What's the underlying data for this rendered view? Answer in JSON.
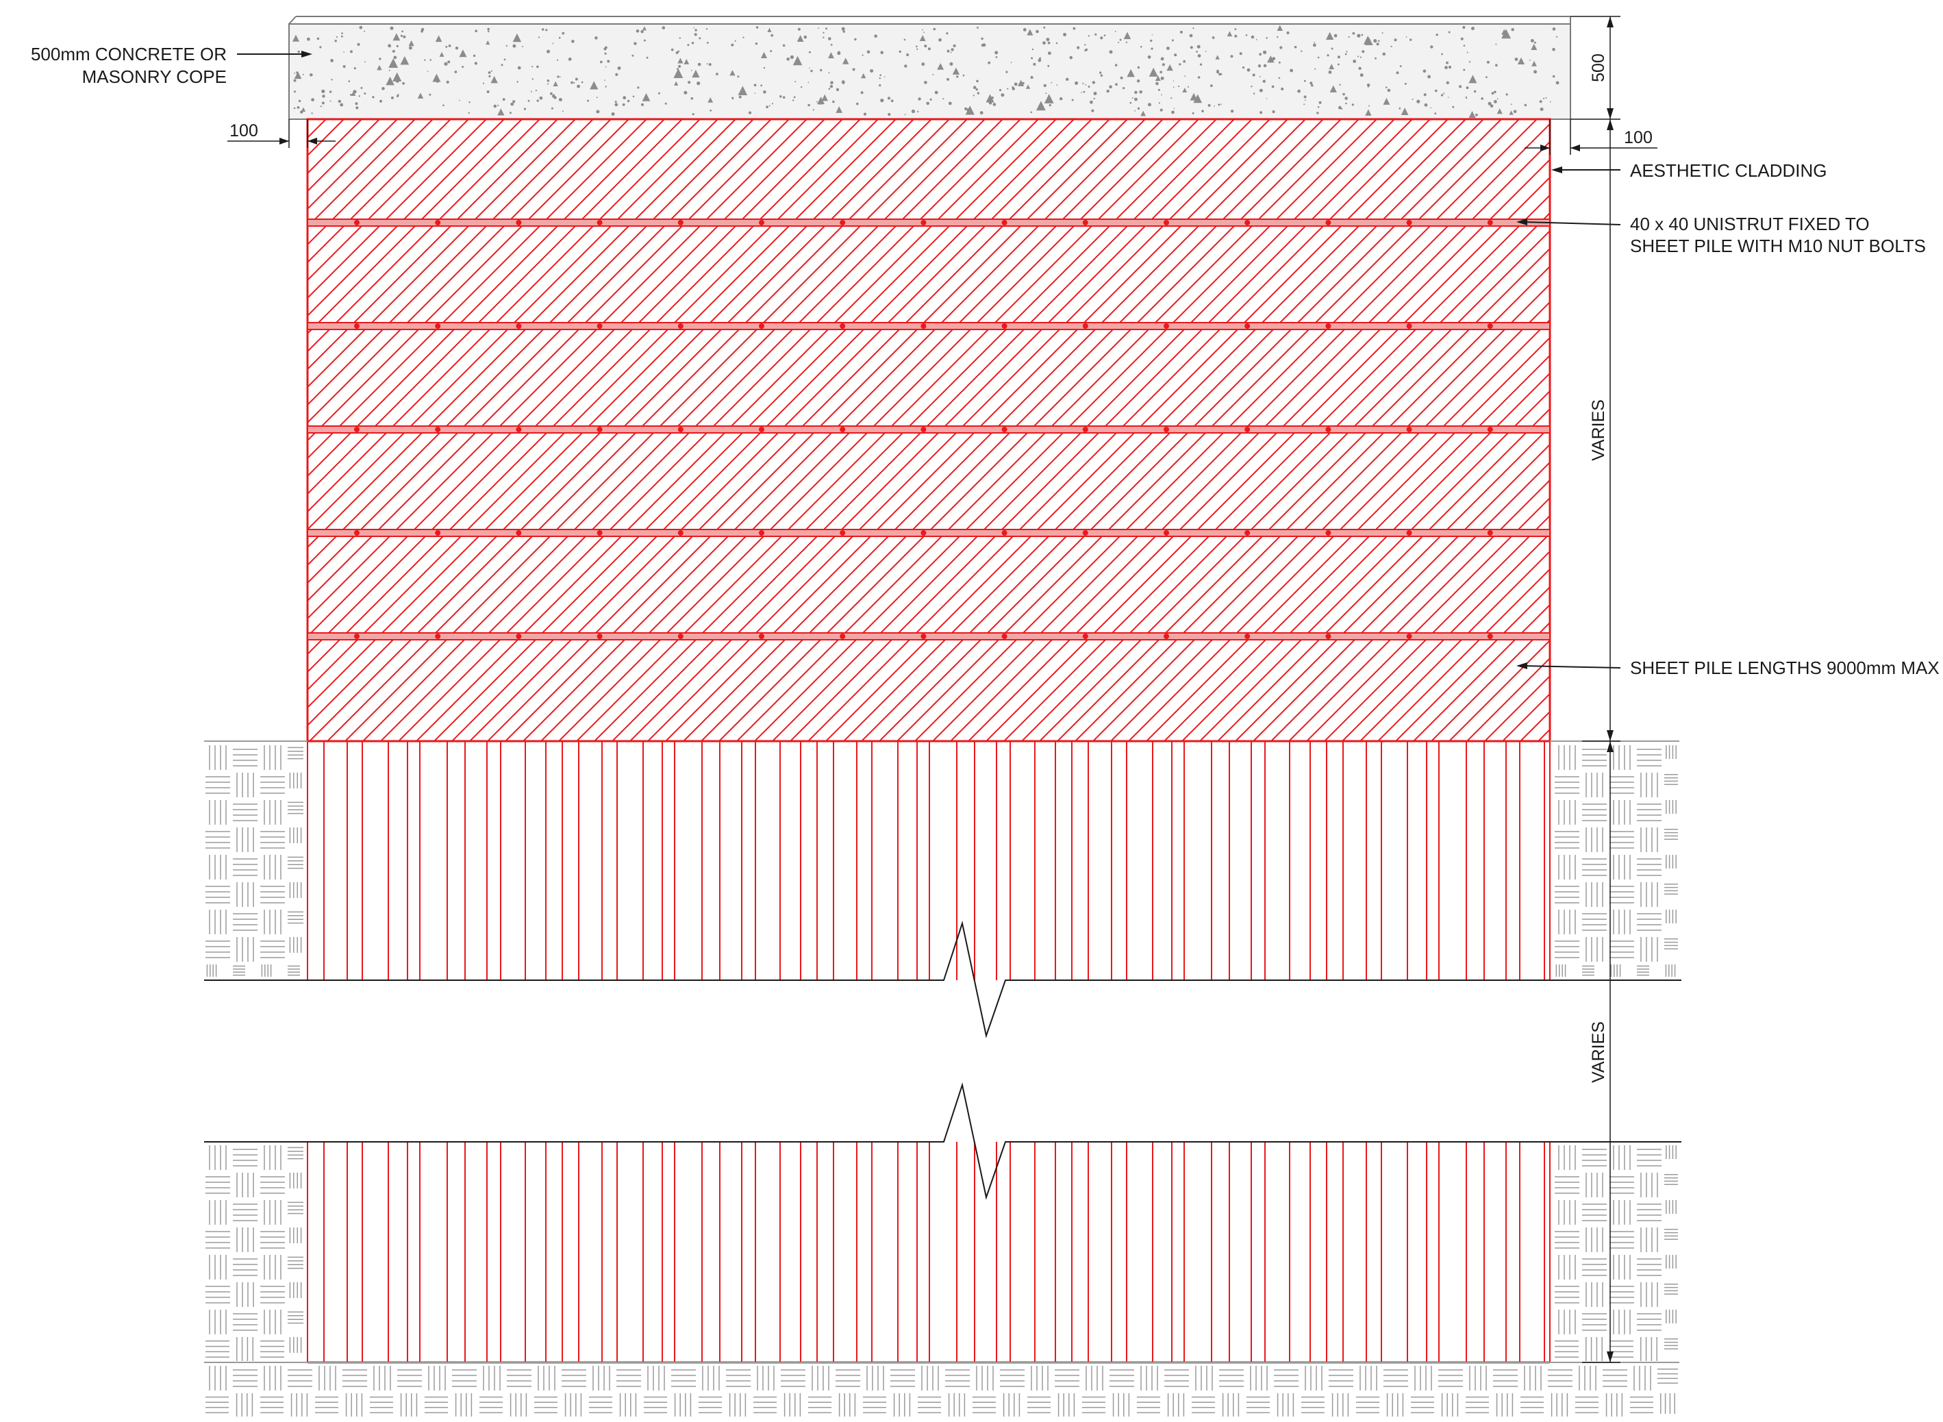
{
  "labels": {
    "cope_line1": "500mm CONCRETE OR",
    "cope_line2": "MASONRY COPE",
    "cladding": "AESTHETIC CLADDING",
    "unistrut_line1": "40 x 40 UNISTRUT FIXED TO",
    "unistrut_line2": "SHEET PILE WITH M10 NUT BOLTS",
    "sheet_pile": "SHEET PILE LENGTHS 9000mm MAX"
  },
  "dimensions": {
    "cope_height": "500",
    "left_offset": "100",
    "right_offset": "100",
    "exposed_height": "VARIES",
    "embedded_height": "VARIES"
  },
  "colors": {
    "cladding_red": "#e8191c",
    "unistrut_fill": "#f4a6a6",
    "line": "#1a1a1a",
    "soil_hatch": "#9a9a9a",
    "concrete_fill": "#f2f2f2",
    "concrete_speckle": "#8c8c8c"
  },
  "elements": {
    "unistrut_rows": 5,
    "bolts_per_row": 15
  }
}
